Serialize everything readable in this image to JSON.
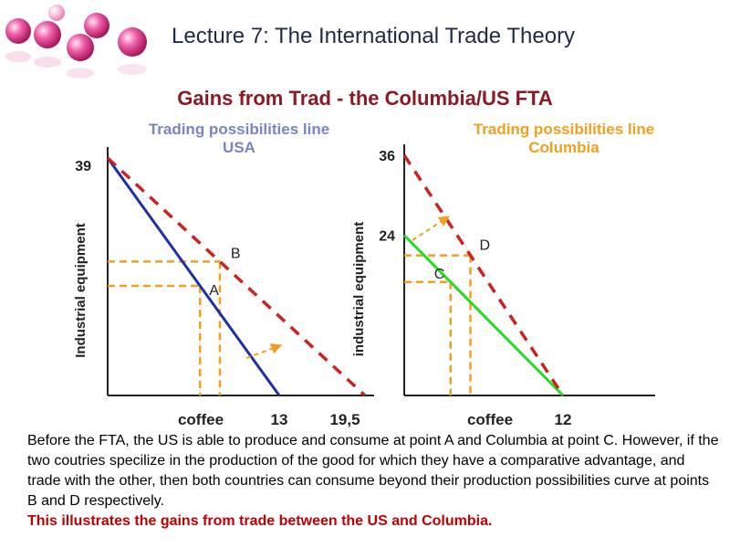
{
  "header": {
    "lecture_title": "Lecture 7: The International Trade Theory",
    "slide_title": "Gains from Trad - the Columbia/US FTA"
  },
  "colors": {
    "usa_line": "#1f2fa8",
    "columbia_line": "#22dd22",
    "trading_line": "#cc2222",
    "guide": "#f0a020",
    "arrow": "#f0a020",
    "usa_title": "#7a84c0",
    "columbia_title": "#f0a020",
    "slide_title": "#8b1a22",
    "conclusion": "#c00000"
  },
  "chart_data": [
    {
      "type": "line",
      "panel_title": "Trading possibilities line\nUSA",
      "panel_title_lines": [
        "Trading possibilities line",
        "USA"
      ],
      "ylabel": "Industrial equipment",
      "xlabel": "coffee",
      "y_ticks": [
        "39"
      ],
      "x_ticks": [
        "13",
        "19,5"
      ],
      "xlim": [
        0,
        19.5
      ],
      "ylim": [
        0,
        39
      ],
      "series": [
        {
          "role": "production",
          "x": [
            0,
            13
          ],
          "y": [
            39,
            0
          ]
        },
        {
          "role": "trading",
          "x": [
            0,
            19.5
          ],
          "y": [
            39,
            0
          ]
        }
      ],
      "points": [
        {
          "label": "A",
          "x": 7,
          "y": 18
        },
        {
          "label": "B",
          "x": 8.5,
          "y": 22
        }
      ]
    },
    {
      "type": "line",
      "panel_title": "Trading possibilities line\nColumbia",
      "panel_title_lines": [
        "Trading possibilities line",
        "Columbia"
      ],
      "ylabel": "industrial equipment",
      "xlabel": "coffee",
      "y_ticks": [
        "36",
        "24"
      ],
      "x_ticks": [
        "12"
      ],
      "xlim": [
        0,
        12
      ],
      "ylim": [
        0,
        36
      ],
      "series": [
        {
          "role": "production",
          "x": [
            0,
            12
          ],
          "y": [
            24,
            0
          ]
        },
        {
          "role": "trading",
          "x": [
            0,
            12
          ],
          "y": [
            36,
            0
          ]
        }
      ],
      "points": [
        {
          "label": "C",
          "x": 3.5,
          "y": 17
        },
        {
          "label": "D",
          "x": 5,
          "y": 21
        }
      ]
    }
  ],
  "body": {
    "paragraph": "Before the FTA, the US is able to produce and consume at point A and Columbia at point C. However, if the two coutries specilize in the production of the good for which they have a comparative advantage, and trade with the other, then both countries can consume beyond their production possibilities curve at points B and D respectively.",
    "conclusion": "This illustrates the gains from trade between the US and Columbia."
  }
}
